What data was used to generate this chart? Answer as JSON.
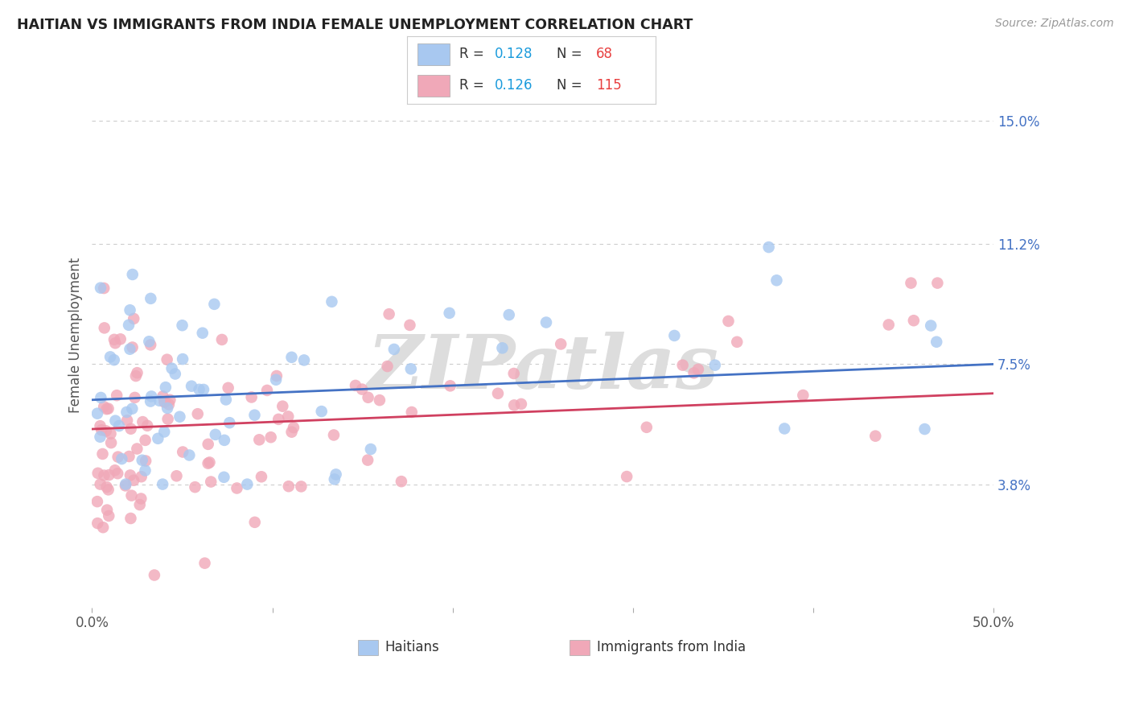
{
  "title": "HAITIAN VS IMMIGRANTS FROM INDIA FEMALE UNEMPLOYMENT CORRELATION CHART",
  "source": "Source: ZipAtlas.com",
  "ylabel": "Female Unemployment",
  "xlim": [
    0.0,
    0.5
  ],
  "ylim": [
    0.0,
    0.168
  ],
  "ytick_labels_right": [
    "15.0%",
    "11.2%",
    "7.5%",
    "3.8%"
  ],
  "ytick_vals_right": [
    0.15,
    0.112,
    0.075,
    0.038
  ],
  "blue_color": "#a8c8f0",
  "pink_color": "#f0a8b8",
  "blue_line_color": "#4472c4",
  "pink_line_color": "#d04060",
  "grid_color": "#cccccc",
  "background_color": "#ffffff",
  "watermark": "ZIPatlas",
  "watermark_color": "#dddddd",
  "legend_R_color": "#1a9bdc",
  "legend_N_color": "#e84040",
  "title_color": "#222222",
  "source_color": "#999999",
  "ylabel_color": "#555555",
  "tick_label_color": "#555555",
  "right_tick_color": "#4472c4"
}
